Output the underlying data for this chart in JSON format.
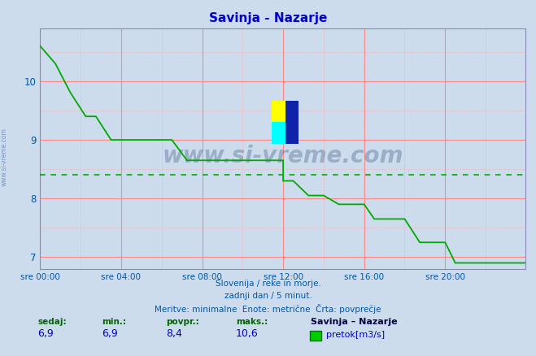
{
  "title": "Savinja - Nazarje",
  "title_color": "#0000cc",
  "bg_color": "#ccdcec",
  "plot_bg_color": "#ccdcec",
  "line_color": "#00aa00",
  "avg_line_color": "#00aa00",
  "avg_value": 8.4,
  "xlabel_color": "#0055aa",
  "ylabel_color": "#0055aa",
  "axis_color": "#0000cc",
  "grid_major_color": "#ff8888",
  "grid_minor_color": "#ffaaaa",
  "ylim": [
    6.8,
    10.9
  ],
  "yticks": [
    7,
    8,
    9,
    10
  ],
  "xtick_labels": [
    "sre 00:00",
    "sre 04:00",
    "sre 08:00",
    "sre 12:00",
    "sre 16:00",
    "sre 20:00"
  ],
  "xtick_positions": [
    0,
    96,
    192,
    288,
    384,
    480
  ],
  "total_points": 575,
  "footer_line1": "Slovenija / reke in morje.",
  "footer_line2": "zadnji dan / 5 minut.",
  "footer_line3": "Meritve: minimalne  Enote: metrične  Črta: povprečje",
  "footer_color": "#0055aa",
  "stats_label_color": "#006600",
  "stats_value_color": "#0000cc",
  "legend_station": "Savinja – Nazarje",
  "legend_label": "pretok[m3/s]",
  "legend_color": "#00cc00",
  "sedaj": "6,9",
  "min_val": "6,9",
  "povpr": "8,4",
  "maks": "10,6",
  "watermark_text": "www.si-vreme.com",
  "left_label": "www.si-vreme.com",
  "data_x": [
    0,
    0,
    18,
    18,
    36,
    36,
    54,
    54,
    66,
    66,
    84,
    84,
    96,
    96,
    102,
    102,
    120,
    120,
    138,
    138,
    156,
    156,
    174,
    174,
    192,
    192,
    204,
    204,
    222,
    222,
    240,
    240,
    258,
    258,
    276,
    276,
    288,
    288,
    300,
    300,
    318,
    318,
    336,
    336,
    354,
    354,
    372,
    372,
    384,
    384,
    396,
    396,
    414,
    414,
    432,
    432,
    450,
    450,
    468,
    468,
    480,
    480,
    492,
    492,
    510,
    510,
    528,
    528,
    546,
    546,
    564,
    564,
    575
  ],
  "data_y": [
    10.6,
    10.6,
    10.3,
    10.3,
    9.8,
    9.8,
    9.4,
    9.4,
    9.4,
    9.4,
    9.0,
    9.0,
    9.0,
    9.0,
    9.0,
    9.0,
    9.0,
    9.0,
    9.0,
    9.0,
    9.0,
    9.0,
    8.65,
    8.65,
    8.65,
    8.65,
    8.65,
    8.65,
    8.65,
    8.65,
    8.65,
    8.65,
    8.65,
    8.65,
    8.65,
    8.65,
    8.65,
    8.3,
    8.3,
    8.3,
    8.05,
    8.05,
    8.05,
    8.05,
    7.9,
    7.9,
    7.9,
    7.9,
    7.9,
    7.9,
    7.65,
    7.65,
    7.65,
    7.65,
    7.65,
    7.65,
    7.25,
    7.25,
    7.25,
    7.25,
    7.25,
    7.25,
    6.9,
    6.9,
    6.9,
    6.9,
    6.9,
    6.9,
    6.9,
    6.9,
    6.9,
    6.9,
    6.9
  ]
}
